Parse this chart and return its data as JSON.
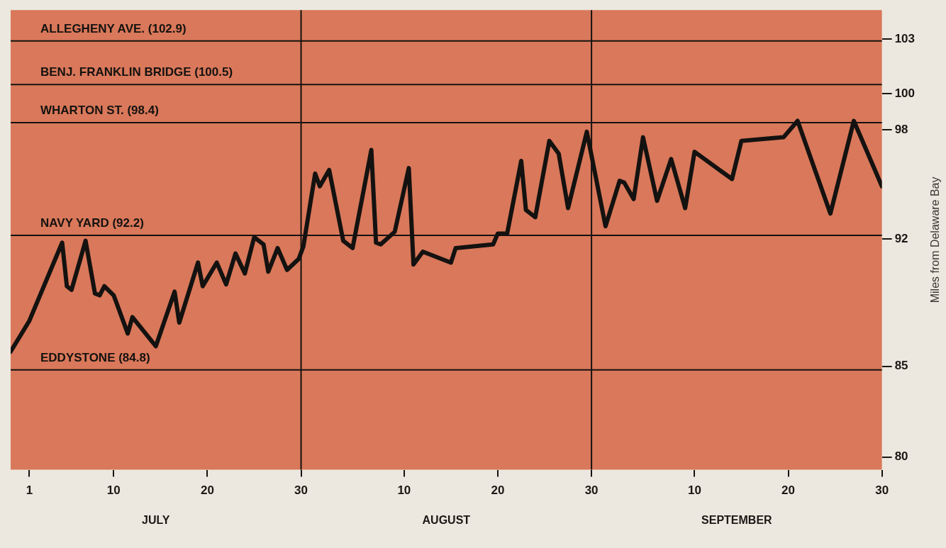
{
  "chart_data": {
    "type": "line",
    "ylabel": "Miles from Delaware Bay",
    "x": [
      "--06-29",
      "--07-01",
      "--07-04T12:00",
      "--07-05",
      "--07-05T12:00",
      "--07-07",
      "--07-08",
      "--07-08T12:00",
      "--07-09",
      "--07-10",
      "--07-11T12:00",
      "--07-12",
      "--07-14T12:00",
      "--07-16T12:00",
      "--07-17",
      "--07-19",
      "--07-19T12:00",
      "--07-21",
      "--07-22",
      "--07-23",
      "--07-24",
      "--07-25",
      "--07-26",
      "--07-26T12:00",
      "--07-27T12:00",
      "--07-28T12:00",
      "--07-29T18:00",
      "--07-30T06:00",
      "--07-31T12:00",
      "--08-01",
      "--08-02",
      "--08-03T12:00",
      "--08-04T12:00",
      "--08-06T12:00",
      "--08-07",
      "--08-07T12:00",
      "--08-09",
      "--08-10T12:00",
      "--08-11",
      "--08-12",
      "--08-15",
      "--08-15T12:00",
      "--08-19T12:00",
      "--08-20",
      "--08-21",
      "--08-22T12:00",
      "--08-23",
      "--08-24",
      "--08-25T12:00",
      "--08-26T12:00",
      "--08-27T12:00",
      "--08-29T12:00",
      "--08-31T12:00",
      "--09-02",
      "--09-02T12:00",
      "--09-03T12:00",
      "--09-04T12:00",
      "--09-06",
      "--09-07T12:00",
      "--09-09",
      "--09-10",
      "--09-14",
      "--09-15",
      "--09-19T12:00",
      "--09-21",
      "--09-24T12:00",
      "--09-27",
      "--09-30"
    ],
    "series": [
      {
        "color": "#141210",
        "values": [
          85.8,
          87.5,
          91.8,
          89.4,
          89.2,
          91.9,
          89.0,
          88.9,
          89.4,
          88.9,
          86.8,
          87.7,
          86.1,
          89.1,
          87.4,
          90.7,
          89.4,
          90.7,
          89.5,
          91.2,
          90.1,
          92.1,
          91.7,
          90.2,
          91.5,
          90.3,
          90.9,
          91.6,
          95.6,
          94.9,
          95.8,
          91.9,
          91.5,
          96.9,
          91.8,
          91.7,
          92.4,
          95.9,
          90.6,
          91.3,
          90.7,
          91.5,
          91.7,
          92.3,
          92.3,
          96.3,
          93.6,
          93.2,
          97.4,
          96.7,
          93.7,
          97.9,
          92.7,
          95.2,
          95.1,
          94.2,
          97.6,
          94.1,
          96.4,
          93.7,
          96.8,
          95.3,
          97.4,
          97.6,
          98.5,
          93.4,
          98.5,
          94.9
        ]
      }
    ],
    "xlim": [
      "--06-29",
      "--09-30"
    ],
    "xticks": [
      {
        "value": "--07-01",
        "label": "1"
      },
      {
        "value": "--07-10",
        "label": "10"
      },
      {
        "value": "--07-20",
        "label": "20"
      },
      {
        "value": "--07-30",
        "label": "30"
      },
      {
        "value": "--08-10",
        "label": "10"
      },
      {
        "value": "--08-20",
        "label": "20"
      },
      {
        "value": "--08-30",
        "label": "30"
      },
      {
        "value": "--09-10",
        "label": "10"
      },
      {
        "value": "--09-20",
        "label": "20"
      },
      {
        "value": "--09-30",
        "label": "30"
      }
    ],
    "ylim": [
      79.3,
      104.6
    ],
    "yticks": [
      80,
      85,
      92,
      98,
      100,
      103
    ],
    "ref_lines": [
      {
        "axis": "y",
        "value": 102.9,
        "label": "ALLEGHENY AVE. (102.9)"
      },
      {
        "axis": "y",
        "value": 100.5,
        "label": "BENJ. FRANKLIN BRIDGE (100.5)"
      },
      {
        "axis": "y",
        "value": 98.4,
        "label": "WHARTON ST. (98.4)"
      },
      {
        "axis": "y",
        "value": 92.2,
        "label": "NAVY YARD (92.2)"
      },
      {
        "axis": "y",
        "value": 84.8,
        "label": "EDDYSTONE (84.8)"
      },
      {
        "axis": "x",
        "value": "--07-30"
      },
      {
        "axis": "x",
        "value": "--08-30"
      }
    ],
    "annotations": [
      "JULY",
      "AUGUST",
      "SEPTEMBER"
    ],
    "grid": false,
    "legend": false,
    "marker": "none",
    "line_style": "solid"
  }
}
